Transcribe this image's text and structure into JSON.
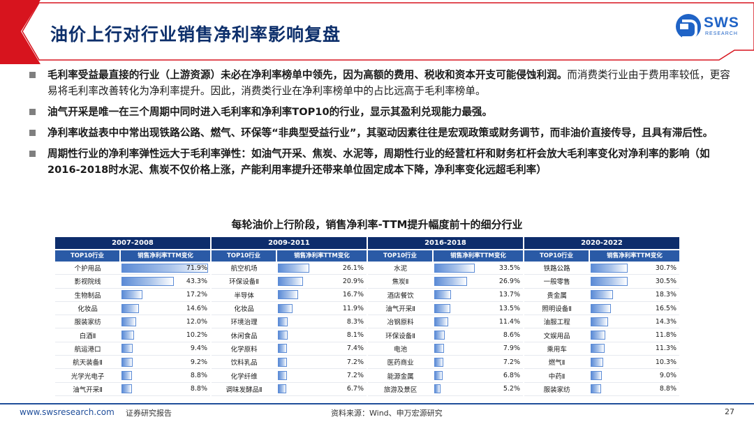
{
  "header": {
    "title": "油价上行对行业销售净利率影响复盘",
    "logo_text": "SWS",
    "logo_subtext": "RESEARCH"
  },
  "bullets": [
    {
      "bold": "毛利率受益最直接的行业（上游资源）未必在净利率榜单中领先，因为高额的费用、税收和资本开支可能侵蚀利润。",
      "normal": "而消费类行业由于费用率较低，更容易将毛利率改善转化为净利率提升。因此，消费类行业在净利率榜单中的占比远高于毛利率榜单。"
    },
    {
      "bold": "油气开采是唯一在三个周期中同时进入毛利率和净利率TOP10的行业，显示其盈利兑现能力最强。",
      "normal": ""
    },
    {
      "bold": "净利率收益表中中常出现铁路公路、燃气、环保等“非典型受益行业”，其驱动因素往往是宏观政策或财务调节，而非油价直接传导，且具有滞后性。",
      "normal": ""
    },
    {
      "bold": "周期性行业的净利率弹性远大于毛利率弹性：如油气开采、焦炭、水泥等，周期性行业的经营杠杆和财务杠杆会放大毛利率变化对净利率的影响（如2016-2018时水泥、焦炭不仅价格上涨，产能利用率提升还带来单位固定成本下降，净利率变化远超毛利率）",
      "normal": ""
    }
  ],
  "table": {
    "caption": "每轮油价上行阶段，销售净利率-TTM提升幅度前十的细分行业",
    "col_industry": "TOP10行业",
    "col_value": "销售净利率TTM变化",
    "periods": [
      {
        "label": "2007-2008",
        "rows": [
          {
            "name": "个护用品",
            "value": "71.9%",
            "num": 71.9
          },
          {
            "name": "影视院线",
            "value": "43.3%",
            "num": 43.3
          },
          {
            "name": "生物制品",
            "value": "17.2%",
            "num": 17.2
          },
          {
            "name": "化妆品",
            "value": "14.6%",
            "num": 14.6
          },
          {
            "name": "服装家纺",
            "value": "12.0%",
            "num": 12.0
          },
          {
            "name": "白酒Ⅱ",
            "value": "10.2%",
            "num": 10.2
          },
          {
            "name": "航运港口",
            "value": "9.4%",
            "num": 9.4
          },
          {
            "name": "航天装备Ⅱ",
            "value": "9.2%",
            "num": 9.2
          },
          {
            "name": "光学光电子",
            "value": "8.8%",
            "num": 8.8
          },
          {
            "name": "油气开采Ⅱ",
            "value": "8.8%",
            "num": 8.8
          }
        ]
      },
      {
        "label": "2009-2011",
        "rows": [
          {
            "name": "航空机场",
            "value": "26.1%",
            "num": 26.1
          },
          {
            "name": "环保设备Ⅱ",
            "value": "20.9%",
            "num": 20.9
          },
          {
            "name": "半导体",
            "value": "16.7%",
            "num": 16.7
          },
          {
            "name": "化妆品",
            "value": "11.9%",
            "num": 11.9
          },
          {
            "name": "环境治理",
            "value": "8.3%",
            "num": 8.3
          },
          {
            "name": "休闲食品",
            "value": "8.1%",
            "num": 8.1
          },
          {
            "name": "化学原料",
            "value": "7.4%",
            "num": 7.4
          },
          {
            "name": "饮料乳品",
            "value": "7.2%",
            "num": 7.2
          },
          {
            "name": "化学纤维",
            "value": "7.2%",
            "num": 7.2
          },
          {
            "name": "调味发酵品Ⅱ",
            "value": "6.7%",
            "num": 6.7
          }
        ]
      },
      {
        "label": "2016-2018",
        "rows": [
          {
            "name": "水泥",
            "value": "33.5%",
            "num": 33.5
          },
          {
            "name": "焦炭Ⅱ",
            "value": "26.9%",
            "num": 26.9
          },
          {
            "name": "酒店餐饮",
            "value": "13.7%",
            "num": 13.7
          },
          {
            "name": "油气开采Ⅱ",
            "value": "13.5%",
            "num": 13.5
          },
          {
            "name": "冶钢原料",
            "value": "11.4%",
            "num": 11.4
          },
          {
            "name": "环保设备Ⅱ",
            "value": "8.6%",
            "num": 8.6
          },
          {
            "name": "电池",
            "value": "7.9%",
            "num": 7.9
          },
          {
            "name": "医药商业",
            "value": "7.2%",
            "num": 7.2
          },
          {
            "name": "能源金属",
            "value": "6.8%",
            "num": 6.8
          },
          {
            "name": "旅游及景区",
            "value": "5.2%",
            "num": 5.2
          }
        ]
      },
      {
        "label": "2020-2022",
        "rows": [
          {
            "name": "铁路公路",
            "value": "30.7%",
            "num": 30.7
          },
          {
            "name": "一般零售",
            "value": "30.5%",
            "num": 30.5
          },
          {
            "name": "贵金属",
            "value": "18.3%",
            "num": 18.3
          },
          {
            "name": "照明设备Ⅱ",
            "value": "16.5%",
            "num": 16.5
          },
          {
            "name": "油服工程",
            "value": "14.3%",
            "num": 14.3
          },
          {
            "name": "文娱用品",
            "value": "11.8%",
            "num": 11.8
          },
          {
            "name": "乘用车",
            "value": "11.3%",
            "num": 11.3
          },
          {
            "name": "燃气Ⅱ",
            "value": "10.3%",
            "num": 10.3
          },
          {
            "name": "中药Ⅱ",
            "value": "9.0%",
            "num": 9.0
          },
          {
            "name": "服装家纺",
            "value": "8.8%",
            "num": 8.8
          }
        ]
      }
    ]
  },
  "footer": {
    "website": "www.swsresearch.com",
    "report_type": "证券研究报告",
    "source": "资料来源：Wind、申万宏源研究",
    "page": "27"
  },
  "colors": {
    "brand_red": "#d7141e",
    "brand_navy": "#0d2d6c",
    "brand_blue": "#1f63c6",
    "bar_blue": "#5b8bd6"
  }
}
